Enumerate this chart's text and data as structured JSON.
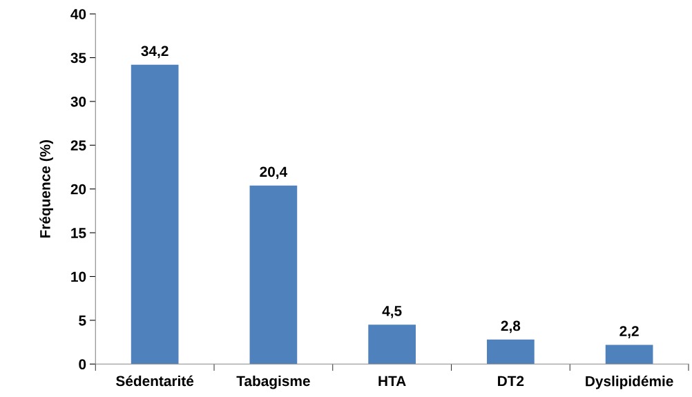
{
  "chart_data": {
    "type": "bar",
    "ylabel": "Fréquence (%)",
    "categories": [
      "Sédentarité",
      "Tabagisme",
      "HTA",
      "DT2",
      "Dyslipidémie"
    ],
    "values": [
      34.2,
      20.4,
      4.5,
      2.8,
      2.2
    ],
    "value_labels": [
      "34,2",
      "20,4",
      "4,5",
      "2,8",
      "2,2"
    ],
    "color": "#4f81bd",
    "ylim": [
      0,
      40
    ],
    "yticks": [
      0,
      5,
      10,
      15,
      20,
      25,
      30,
      35,
      40
    ],
    "grid": false,
    "legend": false
  }
}
